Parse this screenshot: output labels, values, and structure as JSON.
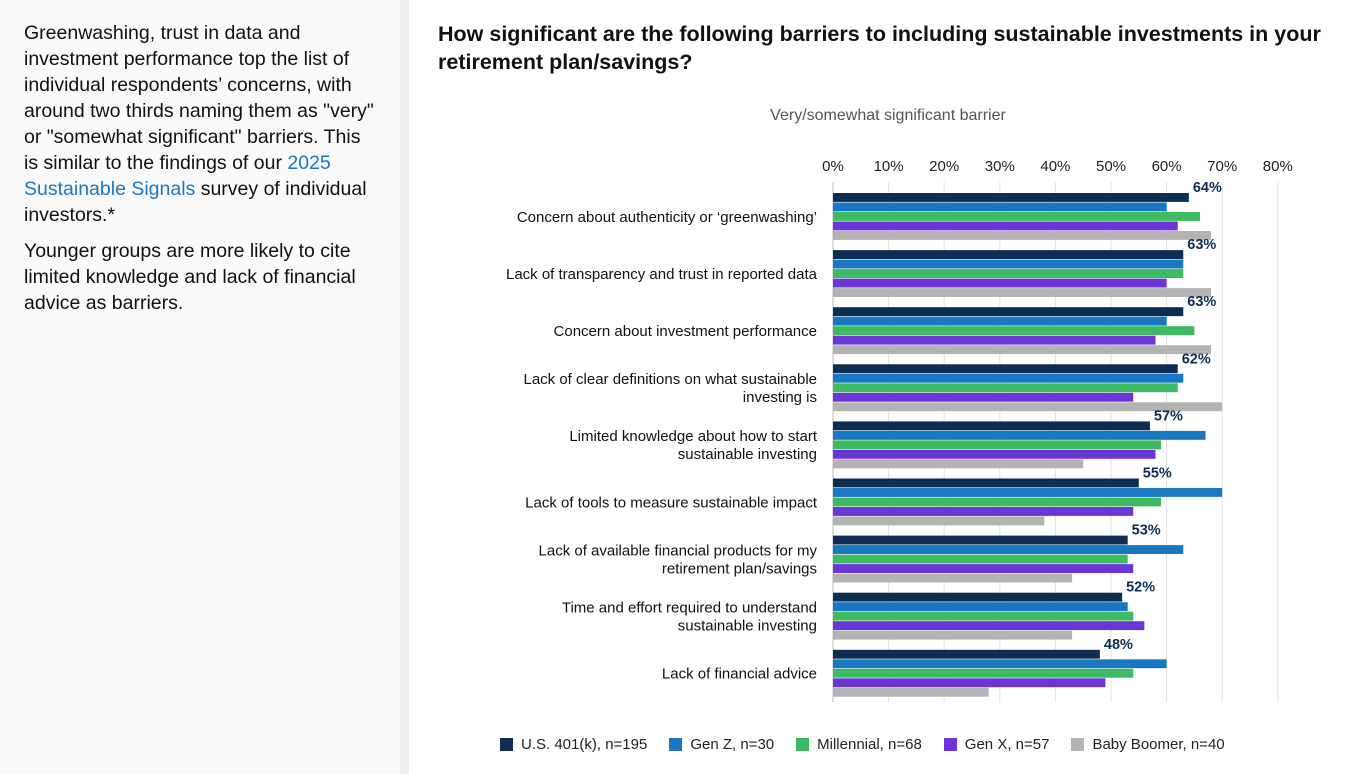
{
  "left_panel": {
    "para1_before": "Greenwashing, trust in data and investment performance top the list of individual respondents’ concerns, with around two thirds naming them as \"very\" or \"somewhat significant\" barriers. This is similar to the findings of our ",
    "para1_link": "2025 Sustainable Signals",
    "para1_after": " survey of individual investors.*",
    "para2": "Younger groups are more likely to cite limited knowledge and lack of financial advice as barriers."
  },
  "colors": {
    "link": "#1a78c2",
    "label_value": "#0d2d52"
  },
  "chart_data": {
    "type": "bar",
    "orientation": "horizontal",
    "title": "How significant are the following barriers to including sustainable investments in your retirement plan/savings?",
    "subtitle": "Very/somewhat significant barrier",
    "xlim": [
      0,
      80
    ],
    "ticks": [
      0,
      10,
      20,
      30,
      40,
      50,
      60,
      70,
      80
    ],
    "tick_labels": [
      "0%",
      "10%",
      "20%",
      "30%",
      "40%",
      "50%",
      "60%",
      "70%",
      "80%"
    ],
    "grid": true,
    "legend_position": "bottom",
    "categories": [
      [
        "Concern about authenticity or ‘greenwashing’"
      ],
      [
        "Lack of transparency and trust in reported data"
      ],
      [
        "Concern about investment performance"
      ],
      [
        "Lack of clear definitions on what sustainable",
        "investing is"
      ],
      [
        "Limited knowledge about how to start",
        "sustainable investing"
      ],
      [
        "Lack of tools to measure sustainable impact"
      ],
      [
        "Lack of available financial products for my",
        "retirement plan/savings"
      ],
      [
        "Time and effort required to understand",
        "sustainable investing"
      ],
      [
        "Lack of financial advice"
      ]
    ],
    "series": [
      {
        "name": "U.S. 401(k), n=195",
        "color": "#0d2d52",
        "values": [
          64,
          63,
          63,
          62,
          57,
          55,
          53,
          52,
          48
        ],
        "labels": [
          "64%",
          "63%",
          "63%",
          "62%",
          "57%",
          "55%",
          "53%",
          "52%",
          "48%"
        ]
      },
      {
        "name": "Gen Z, n=30",
        "color": "#1a78c2",
        "values": [
          60,
          63,
          60,
          63,
          67,
          70,
          63,
          53,
          60
        ]
      },
      {
        "name": "Millennial, n=68",
        "color": "#3dba62",
        "values": [
          66,
          63,
          65,
          62,
          59,
          59,
          53,
          54,
          54
        ]
      },
      {
        "name": "Gen X, n=57",
        "color": "#6c35d6",
        "values": [
          62,
          60,
          58,
          54,
          58,
          54,
          54,
          56,
          49
        ]
      },
      {
        "name": "Baby Boomer, n=40",
        "color": "#b3b3b3",
        "values": [
          68,
          68,
          68,
          70,
          45,
          38,
          43,
          43,
          28
        ]
      }
    ]
  }
}
